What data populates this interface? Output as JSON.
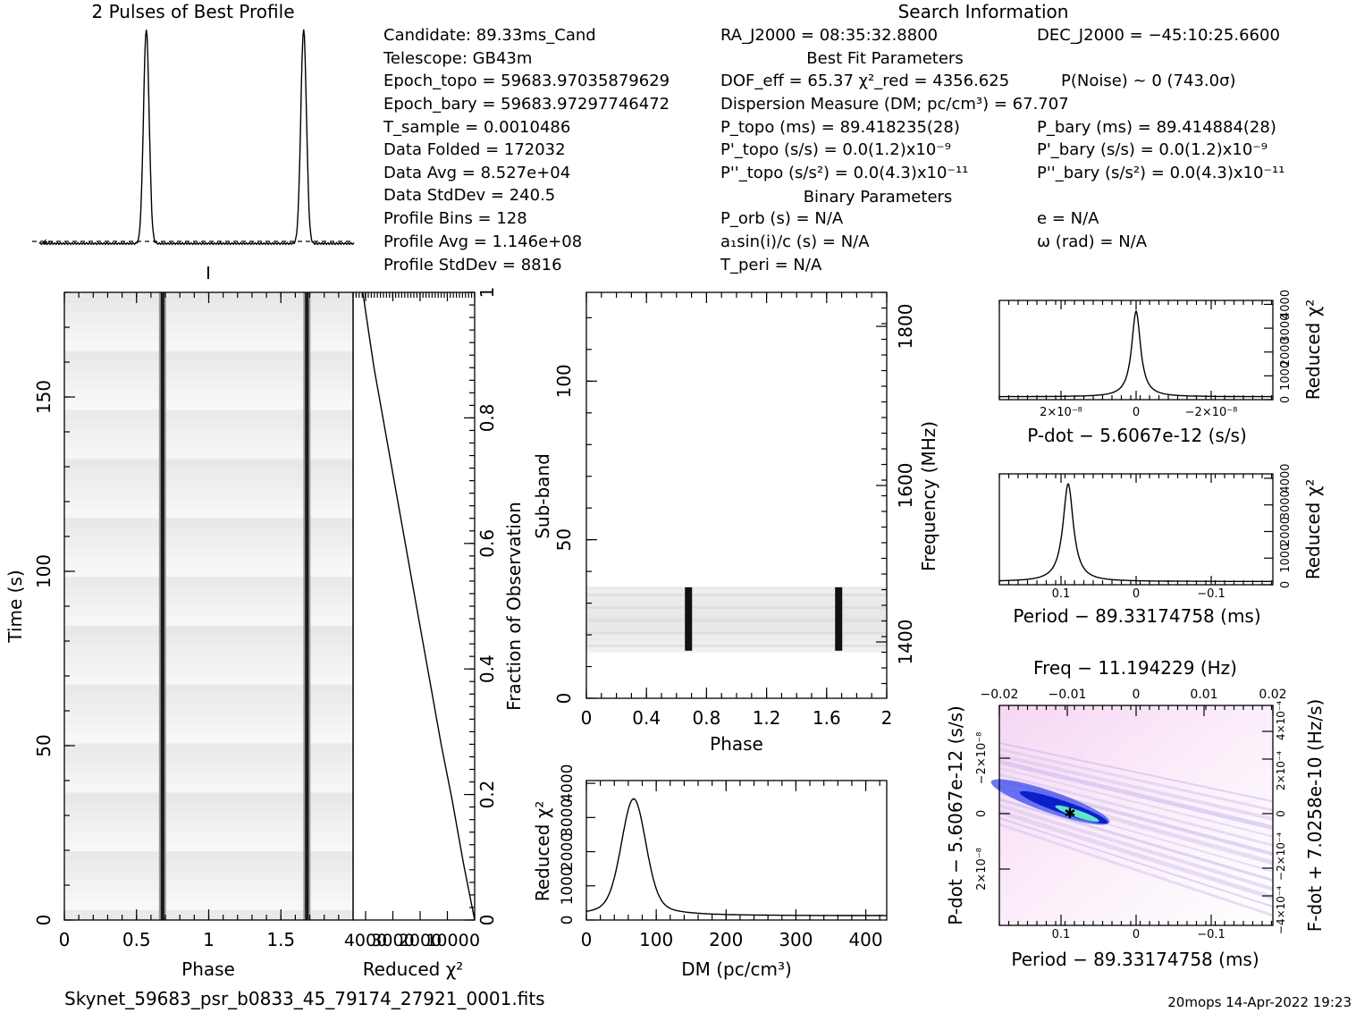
{
  "header": {
    "profile_title": "2 Pulses of Best Profile",
    "search_title": "Search Information",
    "best_fit_title": "Best Fit Parameters",
    "binary_title": "Binary Parameters",
    "footer_filename": "Skynet_59683_psr_b0833_45_79174_27921_0001.fits",
    "footer_stamp": "20mops 14-Apr-2022 19:23"
  },
  "info_left": [
    "Candidate:  89.33ms_Cand",
    "Telescope:  GB43m",
    "Epoch_topo = 59683.97035879629",
    "Epoch_bary = 59683.97297746472",
    "T_sample      =  0.0010486",
    "Data Folded   =  172032",
    "Data Avg      =  8.527e+04",
    "Data StdDev   =  240.5",
    "Profile Bins  =  128",
    "Profile Avg   =  1.146e+08",
    "Profile StdDev =  8816"
  ],
  "info_mid": [
    "RA_J2000 = 08:35:32.8800",
    "DOF_eff = 65.37  χ²_red = 4356.625",
    "Dispersion Measure (DM; pc/cm³) = 67.707",
    "P_topo (ms) =  89.418235(28)",
    "P'_topo (s/s) = 0.0(1.2)x10⁻⁹",
    "P''_topo (s/s²) = 0.0(4.3)x10⁻¹¹",
    "P_orb (s) = N/A",
    "a₁sin(i)/c (s) = N/A",
    "T_peri = N/A"
  ],
  "info_right": [
    "DEC_J2000 = −45:10:25.6600",
    "P(Noise) ~ 0   (743.0σ)",
    "P_bary (ms) =  89.414884(28)",
    "P'_bary (s/s) = 0.0(1.2)x10⁻⁹",
    "P''_bary (s/s²) = 0.0(4.3)x10⁻¹¹",
    "e = N/A",
    "ω (rad) = N/A"
  ],
  "chart_data": [
    {
      "id": "best-profile",
      "type": "line",
      "title": "2 Pulses of Best Profile",
      "x_range": [
        0,
        2
      ],
      "peaks": [
        0.68,
        1.68
      ],
      "peak_width": 0.018,
      "baseline": 0.04,
      "mean_line": 0.06
    },
    {
      "id": "time-phase",
      "type": "heatmap",
      "xlabel": "Phase",
      "ylabel": "Time (s)",
      "xlim": [
        0,
        2
      ],
      "ylim": [
        0,
        180
      ],
      "xticks": [
        "0",
        "0.5",
        "1",
        "1.5"
      ],
      "yticks": [
        "0",
        "50",
        "100",
        "150"
      ],
      "pulse_phases": [
        0.68,
        1.68
      ]
    },
    {
      "id": "time-chi2",
      "type": "line",
      "xlabel": "Reduced χ²",
      "ylabel_right": "Fraction of Observation",
      "xticks": [
        "4000",
        "3000",
        "2000",
        "1000",
        "0"
      ],
      "yticks_right": [
        "0",
        "0.2",
        "0.4",
        "0.6",
        "0.8",
        "1"
      ],
      "x": [
        0,
        0.1,
        0.2,
        0.3,
        0.4,
        0.5,
        0.6,
        0.7,
        0.8,
        0.9,
        0.95,
        1.0
      ],
      "y": [
        0.0,
        0.09,
        0.19,
        0.28,
        0.38,
        0.48,
        0.58,
        0.68,
        0.78,
        0.88,
        0.94,
        1.0
      ]
    },
    {
      "id": "subband-phase",
      "type": "heatmap",
      "xlabel": "Phase",
      "ylabel": "Sub-band",
      "ylabel_right": "Frequency (MHz)",
      "xlim": [
        0,
        2
      ],
      "ylim": [
        0,
        128
      ],
      "xticks": [
        "0",
        "0.4",
        "0.8",
        "1.2",
        "1.6",
        "2"
      ],
      "yticks": [
        "0",
        "50",
        "100"
      ],
      "yticks_right": [
        "1400",
        "1600",
        "1800"
      ],
      "band_range": [
        15,
        35
      ],
      "pulse_phases": [
        0.68,
        1.68
      ]
    },
    {
      "id": "dm-chi2",
      "type": "line",
      "xlabel": "DM (pc/cm³)",
      "ylabel": "Reduced χ²",
      "xlim": [
        0,
        430
      ],
      "xticks": [
        "0",
        "100",
        "200",
        "300",
        "400"
      ],
      "yticks": [
        "0",
        "1000",
        "2000",
        "3000",
        "4000"
      ],
      "peak_dm": 67.707
    },
    {
      "id": "pdot-chi2",
      "type": "line",
      "xlabel": "P-dot − 5.6067e-12 (s/s)",
      "ylabel": "Reduced χ²",
      "xticks": [
        "2×10⁻⁸",
        "0",
        "−2×10⁻⁸"
      ],
      "yticks": [
        "0",
        "1000",
        "2000",
        "3000",
        "4000"
      ]
    },
    {
      "id": "period-chi2",
      "type": "line",
      "xlabel": "Period − 89.33174758 (ms)",
      "ylabel": "Reduced χ²",
      "xticks": [
        "0.1",
        "0",
        "−0.1"
      ],
      "yticks": [
        "0",
        "1000",
        "2000",
        "3000",
        "4000"
      ],
      "peak_period": 0.1
    },
    {
      "id": "p-pdot",
      "type": "heatmap",
      "title": "Freq − 11.194229 (Hz)",
      "xlabel": "Period − 89.33174758 (ms)",
      "ylabel": "P-dot − 5.6067e-12 (s/s)",
      "ylabel_right": "F-dot + 7.0258e-10 (Hz/s)",
      "xticks": [
        "0.1",
        "0",
        "−0.1"
      ],
      "xticks_top": [
        "−0.02",
        "−0.01",
        "0",
        "0.01",
        "0.02"
      ],
      "yticks": [
        "2×10⁻⁸",
        "0",
        "−2×10⁻⁸"
      ],
      "yticks_right": [
        "−4×10⁻⁴",
        "−2×10⁻⁴",
        "0",
        "2×10⁻⁴",
        "4×10⁻⁴"
      ]
    }
  ]
}
